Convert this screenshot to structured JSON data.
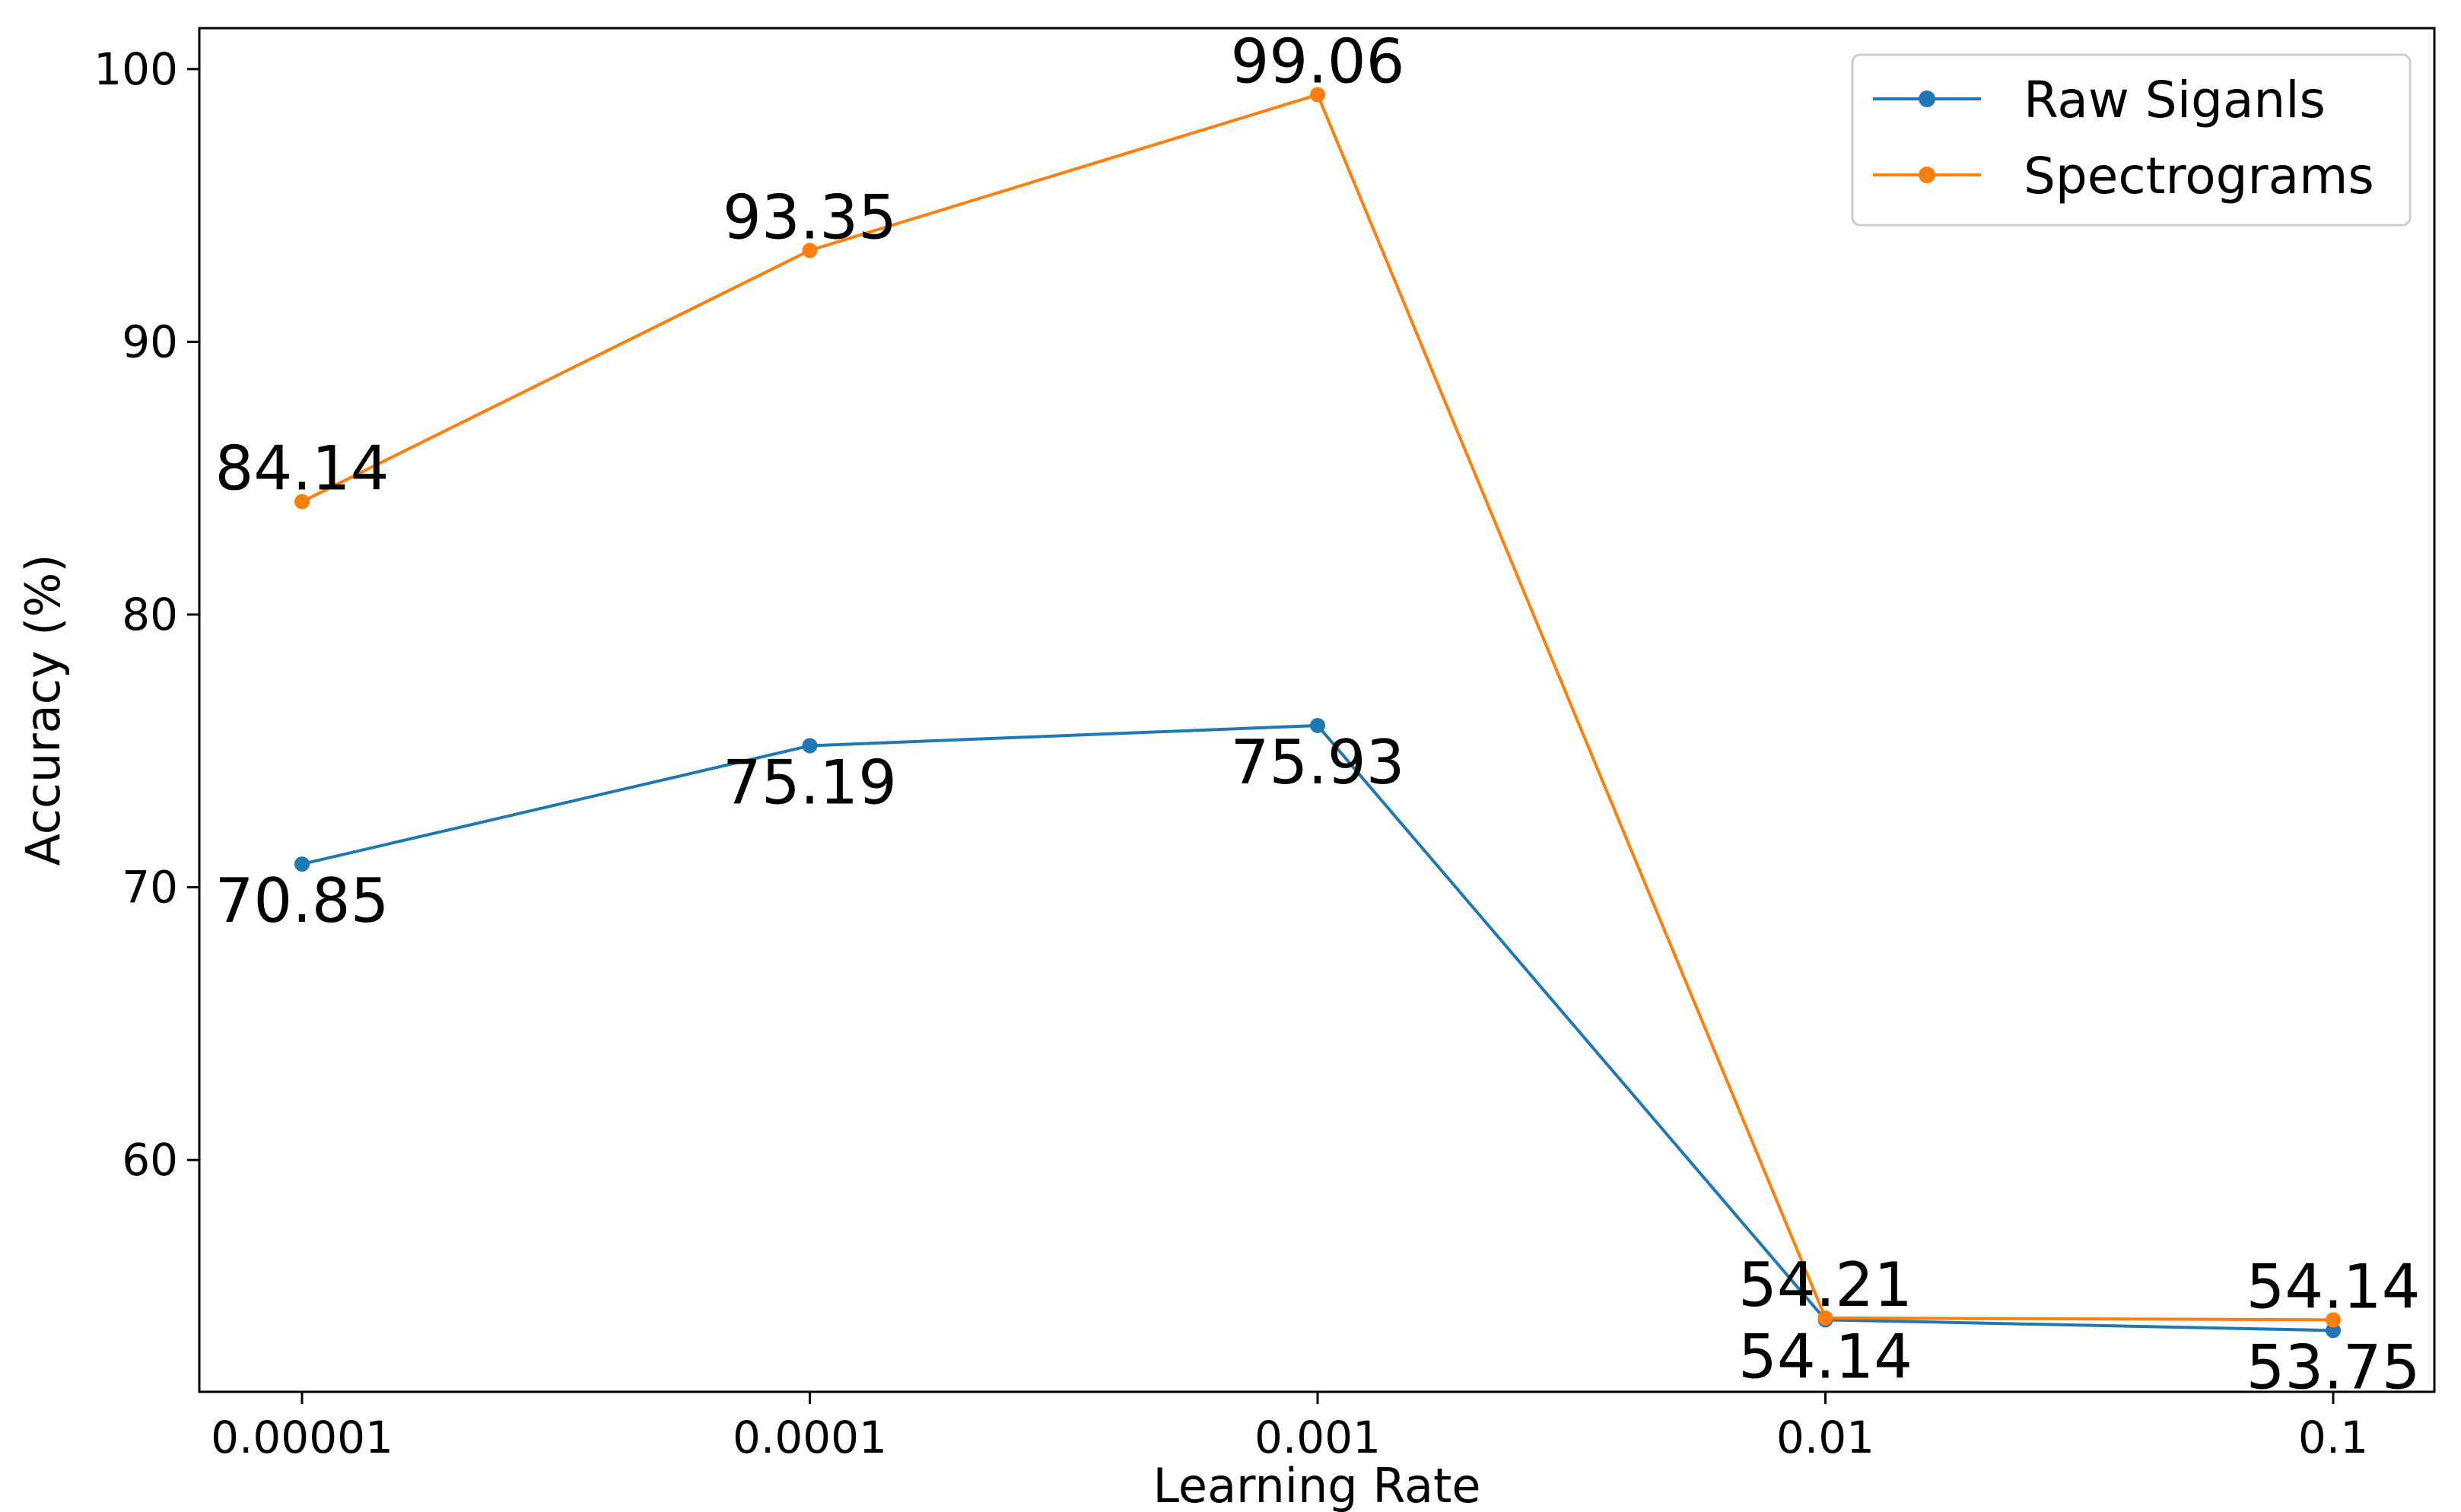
{
  "chart_data": {
    "type": "line",
    "title": "",
    "xlabel": "Learning Rate",
    "ylabel": "Accuracy (%)",
    "categories": [
      "0.00001",
      "0.0001",
      "0.001",
      "0.01",
      "0.1"
    ],
    "ylim": [
      51.5,
      101.5
    ],
    "yticks": [
      60,
      70,
      80,
      90,
      100
    ],
    "grid": false,
    "legend_position": "top-right",
    "series": [
      {
        "name": "Raw Siganls",
        "color": "#1f77b4",
        "values": [
          70.85,
          75.19,
          75.93,
          54.14,
          53.75
        ],
        "labels": [
          "70.85",
          "75.19",
          "75.93",
          "54.14",
          "53.75"
        ],
        "label_side": [
          "below",
          "below",
          "below",
          "below",
          "below"
        ]
      },
      {
        "name": "Spectrograms",
        "color": "#ff7f0e",
        "values": [
          84.14,
          93.35,
          99.06,
          54.21,
          54.14
        ],
        "labels": [
          "84.14",
          "93.35",
          "99.06",
          "54.21",
          "54.14"
        ],
        "label_side": [
          "above",
          "above",
          "above",
          "above",
          "above"
        ]
      }
    ]
  }
}
